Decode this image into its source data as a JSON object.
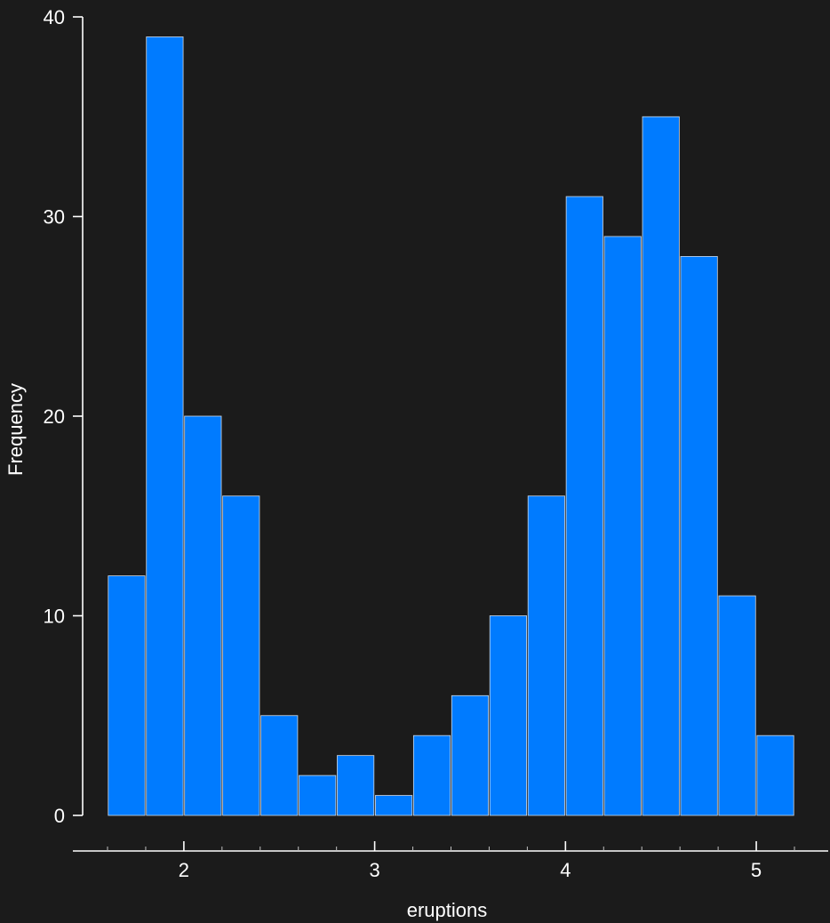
{
  "chart_data": {
    "type": "bar",
    "subtype": "histogram",
    "xlabel": "eruptions",
    "ylabel": "Frequency",
    "bin_edges": [
      1.6,
      1.8,
      2.0,
      2.2,
      2.4,
      2.6,
      2.8,
      3.0,
      3.2,
      3.4,
      3.6,
      3.8,
      4.0,
      4.2,
      4.4,
      4.6,
      4.8,
      5.0,
      5.2
    ],
    "values": [
      12,
      39,
      20,
      16,
      5,
      2,
      3,
      1,
      4,
      6,
      10,
      16,
      31,
      29,
      35,
      28,
      11,
      4
    ],
    "xlim": [
      1.6,
      5.2
    ],
    "ylim": [
      0,
      40
    ],
    "x_ticks": [
      "2",
      "3",
      "4",
      "5"
    ],
    "x_tick_values": [
      2,
      3,
      4,
      5
    ],
    "x_minor_tick_values": [
      1.6,
      1.8,
      2.2,
      2.4,
      2.6,
      2.8,
      3.2,
      3.4,
      3.6,
      3.8,
      4.2,
      4.4,
      4.6,
      4.8,
      5.2
    ],
    "y_ticks": [
      "0",
      "10",
      "20",
      "30",
      "40"
    ],
    "y_tick_values": [
      0,
      10,
      20,
      30,
      40
    ],
    "bar_color": "#007bff",
    "bar_edge_color": "#cfd8e3",
    "background_color": "#1b1b1b",
    "grid": false
  }
}
